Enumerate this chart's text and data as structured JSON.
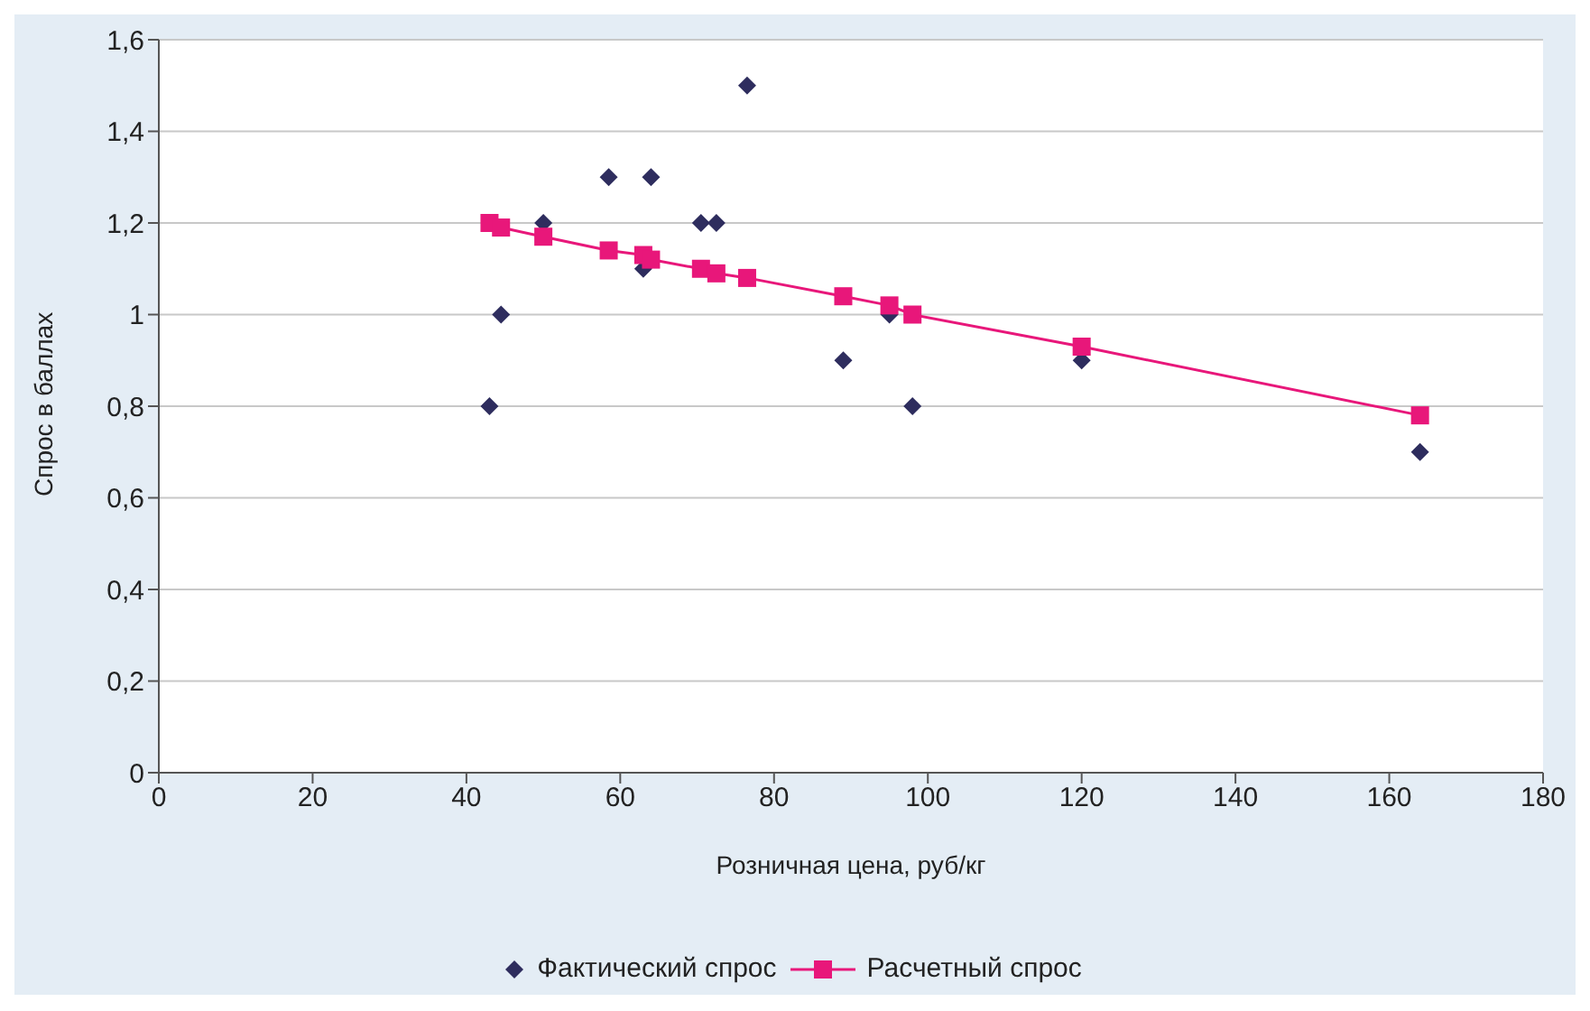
{
  "chart_data": {
    "type": "scatter",
    "xlabel": "Розничная цена, руб/кг",
    "ylabel": "Спрос в баллах",
    "xlim": [
      0,
      180
    ],
    "xticks": [
      0,
      20,
      40,
      60,
      80,
      100,
      120,
      140,
      160,
      180
    ],
    "ylim": [
      0,
      1.6
    ],
    "yticks": [
      0,
      {
        "value": 0.2,
        "label": "0,2"
      },
      {
        "value": 0.4,
        "label": "0,4"
      },
      {
        "value": 0.6,
        "label": "0,6"
      },
      {
        "value": 0.8,
        "label": "0,8"
      },
      1,
      {
        "value": 1.2,
        "label": "1,2"
      },
      {
        "value": 1.4,
        "label": "1,4"
      },
      {
        "value": 1.6,
        "label": "1,6"
      }
    ],
    "grid": "y",
    "legend": "bottom",
    "series": [
      {
        "name": "Фактический спрос",
        "marker": "diamond",
        "color": "#2e2d5e",
        "x": [
          43,
          44.5,
          50,
          58.5,
          63,
          64,
          70.5,
          72.5,
          76.5,
          89,
          95,
          98,
          120,
          164
        ],
        "values": [
          0.8,
          1.0,
          1.2,
          1.3,
          1.1,
          1.3,
          1.2,
          1.2,
          1.5,
          0.9,
          1.0,
          0.8,
          0.9,
          0.7
        ]
      },
      {
        "name": "Расчетный спрос",
        "type": "line",
        "marker": "square",
        "color": "#e8177a",
        "x": [
          43,
          44.5,
          50,
          58.5,
          63,
          64,
          70.5,
          72.5,
          76.5,
          89,
          95,
          98,
          120,
          164
        ],
        "values": [
          1.2,
          1.19,
          1.17,
          1.14,
          1.13,
          1.12,
          1.1,
          1.09,
          1.08,
          1.04,
          1.02,
          1.0,
          0.93,
          0.78
        ]
      }
    ]
  }
}
